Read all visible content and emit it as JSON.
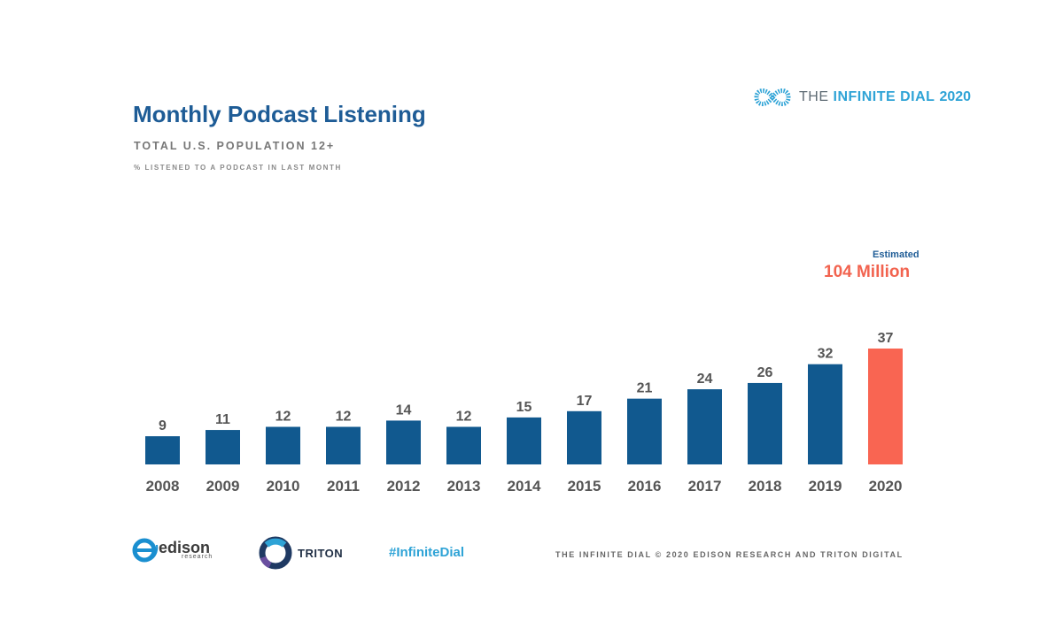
{
  "header": {
    "title": "Monthly Podcast Listening",
    "subtitle": "TOTAL U.S. POPULATION 12+",
    "subtitle2": "% LISTENED TO A PODCAST IN LAST MONTH",
    "brand_prefix": "THE",
    "brand_name": "INFINITE DIAL",
    "brand_year": "2020"
  },
  "annotation": {
    "label": "Estimated",
    "value": "104 Million"
  },
  "colors": {
    "bar": "#11598f",
    "highlight": "#f96552",
    "value_text": "#555555",
    "tick_text": "#555555"
  },
  "chart_data": {
    "type": "bar",
    "title": "Monthly Podcast Listening",
    "categories": [
      "2008",
      "2009",
      "2010",
      "2011",
      "2012",
      "2013",
      "2014",
      "2015",
      "2016",
      "2017",
      "2018",
      "2019",
      "2020"
    ],
    "values": [
      9,
      11,
      12,
      12,
      14,
      12,
      15,
      17,
      21,
      24,
      26,
      32,
      37
    ],
    "highlight_category": "2020",
    "ylim": [
      0,
      37
    ],
    "grid": false,
    "data_labels": true
  },
  "footer": {
    "edison_name": "edison",
    "edison_sub": "research",
    "triton_name": "TRITON",
    "hashtag": "#InfiniteDial",
    "copyright": "THE INFINITE DIAL   © 2020 EDISON RESEARCH AND TRITON DIGITAL"
  }
}
